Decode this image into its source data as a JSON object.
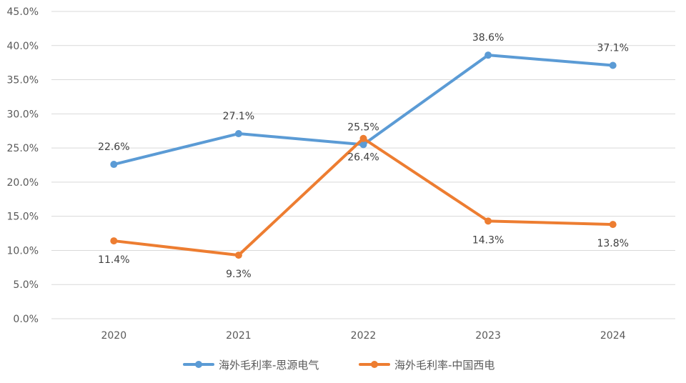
{
  "chart_data": {
    "type": "line",
    "title": "",
    "xlabel": "",
    "ylabel": "",
    "categories": [
      "2020",
      "2021",
      "2022",
      "2023",
      "2024"
    ],
    "ylim": [
      0,
      45
    ],
    "ytick_step": 5,
    "ytick_labels": [
      "0.0%",
      "5.0%",
      "10.0%",
      "15.0%",
      "20.0%",
      "25.0%",
      "30.0%",
      "35.0%",
      "40.0%",
      "45.0%"
    ],
    "grid": true,
    "legend_position": "bottom",
    "series": [
      {
        "name": "海外毛利率-思源电气",
        "color": "#5b9bd5",
        "values": [
          22.6,
          27.1,
          25.5,
          38.6,
          37.1
        ],
        "labels": [
          "22.6%",
          "27.1%",
          "25.5%",
          "38.6%",
          "37.1%"
        ],
        "label_position": [
          "above",
          "above",
          "above",
          "above",
          "above"
        ]
      },
      {
        "name": "海外毛利率-中国西电",
        "color": "#ed7d31",
        "values": [
          11.4,
          9.3,
          26.4,
          14.3,
          13.8
        ],
        "labels": [
          "11.4%",
          "9.3%",
          "26.4%",
          "14.3%",
          "13.8%"
        ],
        "label_position": [
          "below",
          "below",
          "below",
          "below",
          "below"
        ]
      }
    ]
  }
}
